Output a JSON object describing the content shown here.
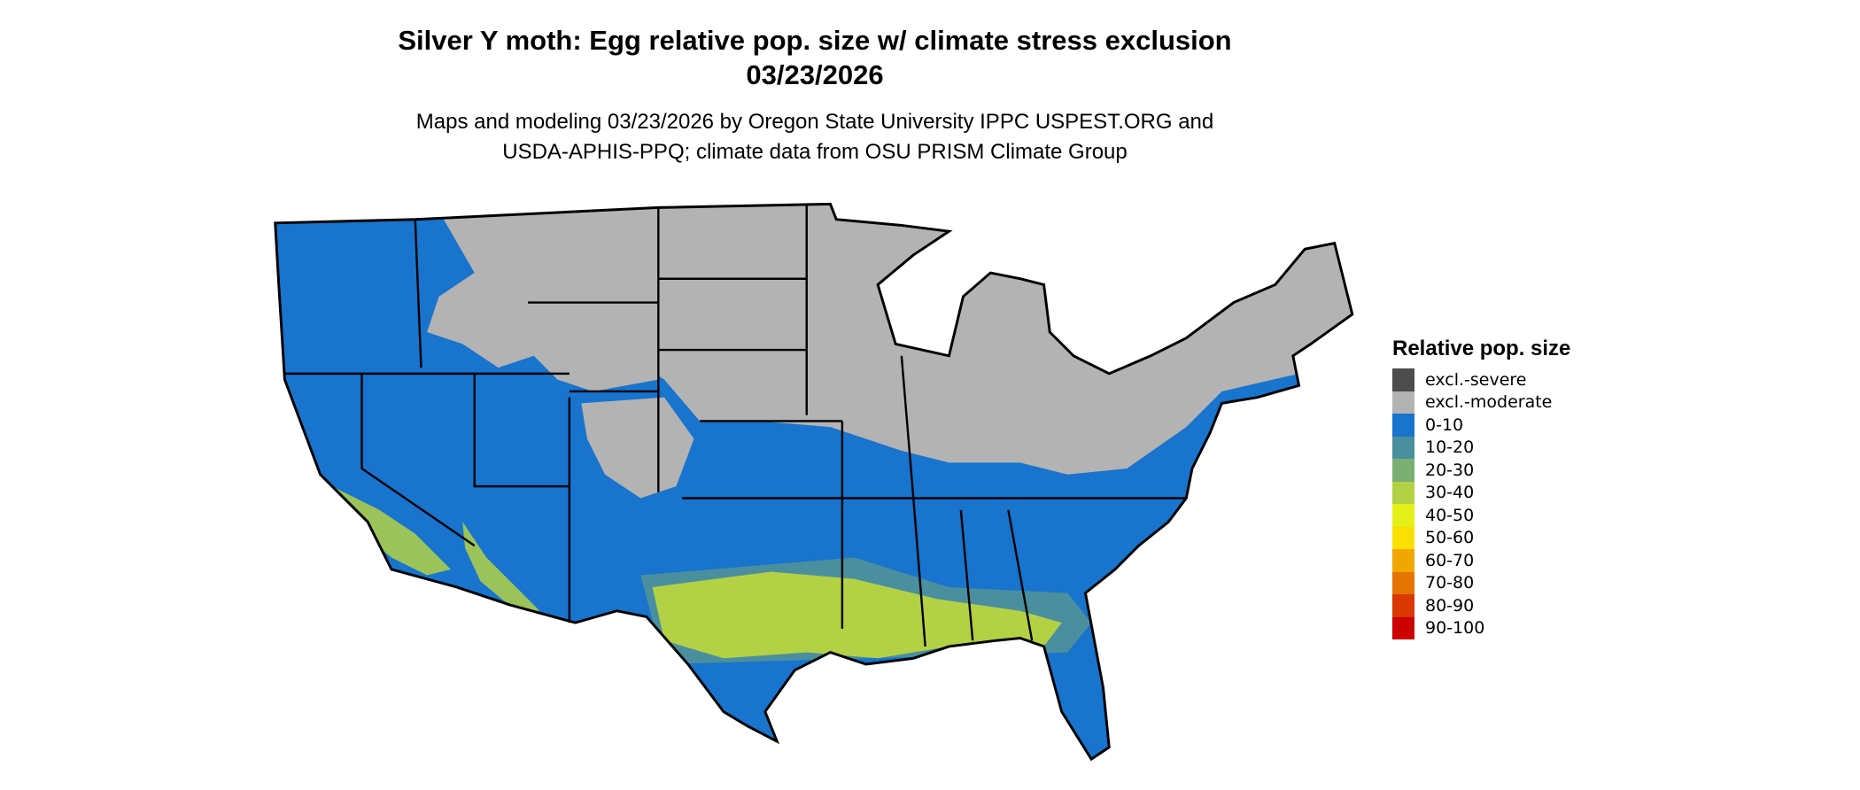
{
  "title": {
    "line1": "Silver Y moth: Egg relative pop. size w/ climate stress exclusion",
    "line2": "03/23/2026"
  },
  "subtitle": {
    "line1": "Maps and modeling 03/23/2026 by Oregon State University IPPC USPEST.ORG and",
    "line2": "USDA-APHIS-PPQ; climate data from OSU PRISM Climate Group"
  },
  "map": {
    "region": "Contiguous United States",
    "colors": {
      "land_default": "#1874cd",
      "excluded": "#b3b3b3",
      "band_30_40": "#b3d145",
      "band_10_20": "#4a8f9e",
      "border": "#000000"
    }
  },
  "legend": {
    "title": "Relative pop. size",
    "items": [
      {
        "label": "excl.-severe",
        "color": "#4d4d4d"
      },
      {
        "label": "excl.-moderate",
        "color": "#b3b3b3"
      },
      {
        "label": "0-10",
        "color": "#1874cd"
      },
      {
        "label": "10-20",
        "color": "#4a8f9e"
      },
      {
        "label": "20-30",
        "color": "#7bae73"
      },
      {
        "label": "30-40",
        "color": "#b3d145"
      },
      {
        "label": "40-50",
        "color": "#e5f018"
      },
      {
        "label": "50-60",
        "color": "#f9e000"
      },
      {
        "label": "60-70",
        "color": "#f0a800"
      },
      {
        "label": "70-80",
        "color": "#e57300"
      },
      {
        "label": "80-90",
        "color": "#d93800"
      },
      {
        "label": "90-100",
        "color": "#cc0000"
      }
    ]
  }
}
